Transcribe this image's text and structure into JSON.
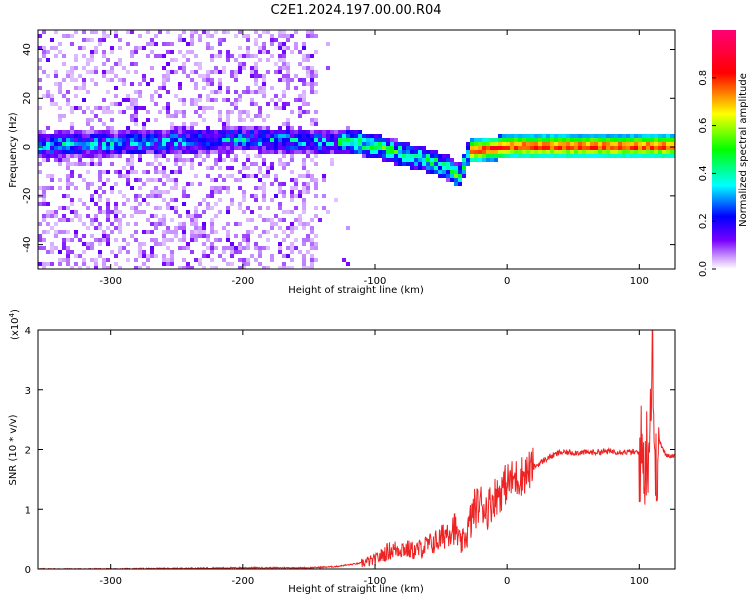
{
  "title": "C2E1.2024.197.00.00.R04",
  "colors": {
    "snr_line": "#ee2222",
    "axis": "#000000"
  },
  "chart_data": [
    {
      "type": "heatmap",
      "xlabel": "Height of straight line (km)",
      "ylabel": "Frequency (Hz)",
      "xlim": [
        -355,
        127
      ],
      "ylim": [
        -50,
        48
      ],
      "xticks": [
        -300,
        -200,
        -100,
        0,
        100
      ],
      "yticks": [
        -40,
        -20,
        0,
        20,
        40
      ],
      "ytick_labels": [
        "-40",
        "-20",
        "0",
        "20",
        "40"
      ],
      "colorbar": {
        "label": "Normalized spectral amplitude",
        "range": [
          0,
          1
        ],
        "ticks": [
          0.0,
          0.2,
          0.4,
          0.6,
          0.8
        ],
        "tick_labels": [
          "0.0",
          "0.2",
          "0.4",
          "0.6",
          "0.8"
        ],
        "colormap": [
          "#ffffff",
          "#7700ff",
          "#0000ff",
          "#00ffff",
          "#00ff00",
          "#ffff00",
          "#ff0000",
          "#ff0077"
        ]
      },
      "ridge": [
        {
          "x": -340,
          "y": 2
        },
        {
          "x": -300,
          "y": 2
        },
        {
          "x": -250,
          "y": 3
        },
        {
          "x": -200,
          "y": 4
        },
        {
          "x": -150,
          "y": 3
        },
        {
          "x": -120,
          "y": 3
        },
        {
          "x": -100,
          "y": 1
        },
        {
          "x": -80,
          "y": -2
        },
        {
          "x": -60,
          "y": -5
        },
        {
          "x": -45,
          "y": -8
        },
        {
          "x": -38,
          "y": -12
        },
        {
          "x": -30,
          "y": -1
        },
        {
          "x": 0,
          "y": 1
        },
        {
          "x": 50,
          "y": 1
        },
        {
          "x": 100,
          "y": 1
        },
        {
          "x": 127,
          "y": 1
        }
      ]
    },
    {
      "type": "line",
      "xlabel": "Height of straight line (km)",
      "ylabel": "SNR (10 * v/v)",
      "scale_label": "(x10",
      "scale_exp": "4",
      "scale_close": ")",
      "xlim": [
        -355,
        127
      ],
      "ylim": [
        0,
        4
      ],
      "xticks": [
        -300,
        -200,
        -100,
        0,
        100
      ],
      "yticks": [
        0,
        1,
        2,
        3,
        4
      ],
      "series": [
        {
          "x": [
            -355,
            -300,
            -250,
            -200,
            -150,
            -130,
            -120,
            -110,
            -100,
            -90,
            -80,
            -70,
            -60,
            -50,
            -45,
            -40,
            -35,
            -30,
            -25,
            -20,
            -15,
            -10,
            -5,
            0,
            5,
            10,
            20,
            30,
            40,
            60,
            80,
            100,
            105,
            108,
            110,
            112,
            114,
            120,
            127
          ],
          "y": [
            0.0,
            0.0,
            0.01,
            0.02,
            0.02,
            0.04,
            0.07,
            0.1,
            0.15,
            0.3,
            0.35,
            0.3,
            0.4,
            0.5,
            0.65,
            0.7,
            0.4,
            0.6,
            1.0,
            1.1,
            1.0,
            1.2,
            1.3,
            1.45,
            1.5,
            1.55,
            1.7,
            1.85,
            1.95,
            1.95,
            1.97,
            1.95,
            1.8,
            2.4,
            4.0,
            1.2,
            2.2,
            1.9,
            1.9
          ]
        }
      ]
    }
  ]
}
